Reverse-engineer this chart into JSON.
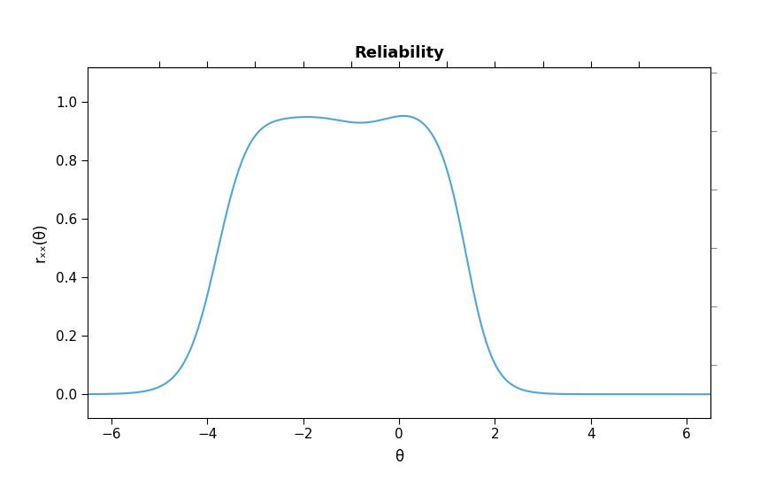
{
  "title": "Reliability",
  "xlabel": "θ",
  "ylabel": "rₓₓ(θ)",
  "xlim": [
    -6.5,
    6.5
  ],
  "ylim": [
    -0.08,
    1.12
  ],
  "xticks": [
    -6,
    -4,
    -2,
    0,
    2,
    4,
    6
  ],
  "yticks": [
    0.0,
    0.2,
    0.4,
    0.6,
    0.8,
    1.0
  ],
  "top_ticks": [
    -5,
    -4,
    -3,
    -2,
    -1,
    0,
    1,
    2,
    3,
    4,
    5
  ],
  "right_ticks": [
    0.1,
    0.3,
    0.5,
    0.7,
    0.9,
    1.1
  ],
  "line_color": "#4da6d9",
  "line_width": 1.5,
  "background_color": "#ffffff",
  "title_fontsize": 13,
  "label_fontsize": 12
}
